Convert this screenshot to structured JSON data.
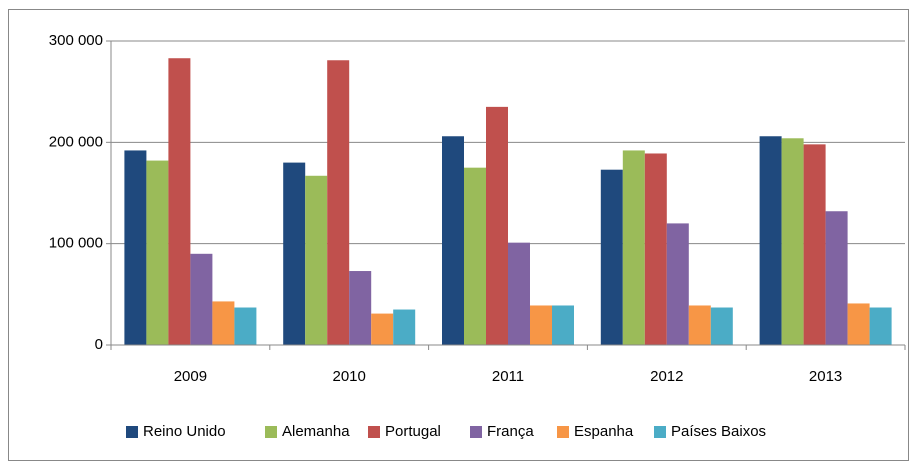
{
  "chart_data": {
    "type": "bar",
    "categories": [
      "2009",
      "2010",
      "2011",
      "2012",
      "2013"
    ],
    "series": [
      {
        "name": "Reino Unido",
        "color": "#1f497d",
        "values": [
          192000,
          180000,
          206000,
          173000,
          206000
        ]
      },
      {
        "name": "Alemanha",
        "color": "#9bbb59",
        "values": [
          182000,
          167000,
          175000,
          192000,
          204000
        ]
      },
      {
        "name": "Portugal",
        "color": "#c0504d",
        "values": [
          283000,
          281000,
          235000,
          189000,
          198000
        ]
      },
      {
        "name": "França",
        "color": "#8064a2",
        "values": [
          90000,
          73000,
          101000,
          120000,
          132000
        ]
      },
      {
        "name": "Espanha",
        "color": "#f79646",
        "values": [
          43000,
          31000,
          39000,
          39000,
          41000
        ]
      },
      {
        "name": "Países Baixos",
        "color": "#4bacc6",
        "values": [
          37000,
          35000,
          39000,
          37000,
          37000
        ]
      }
    ],
    "ylim": [
      0,
      300000
    ],
    "yticks": [
      0,
      {
        "value": 100000,
        "label": "100 000"
      },
      {
        "value": 200000,
        "label": "200 000"
      },
      {
        "value": 300000,
        "label": "300 000"
      }
    ],
    "grid": true,
    "legend": "bottom"
  }
}
